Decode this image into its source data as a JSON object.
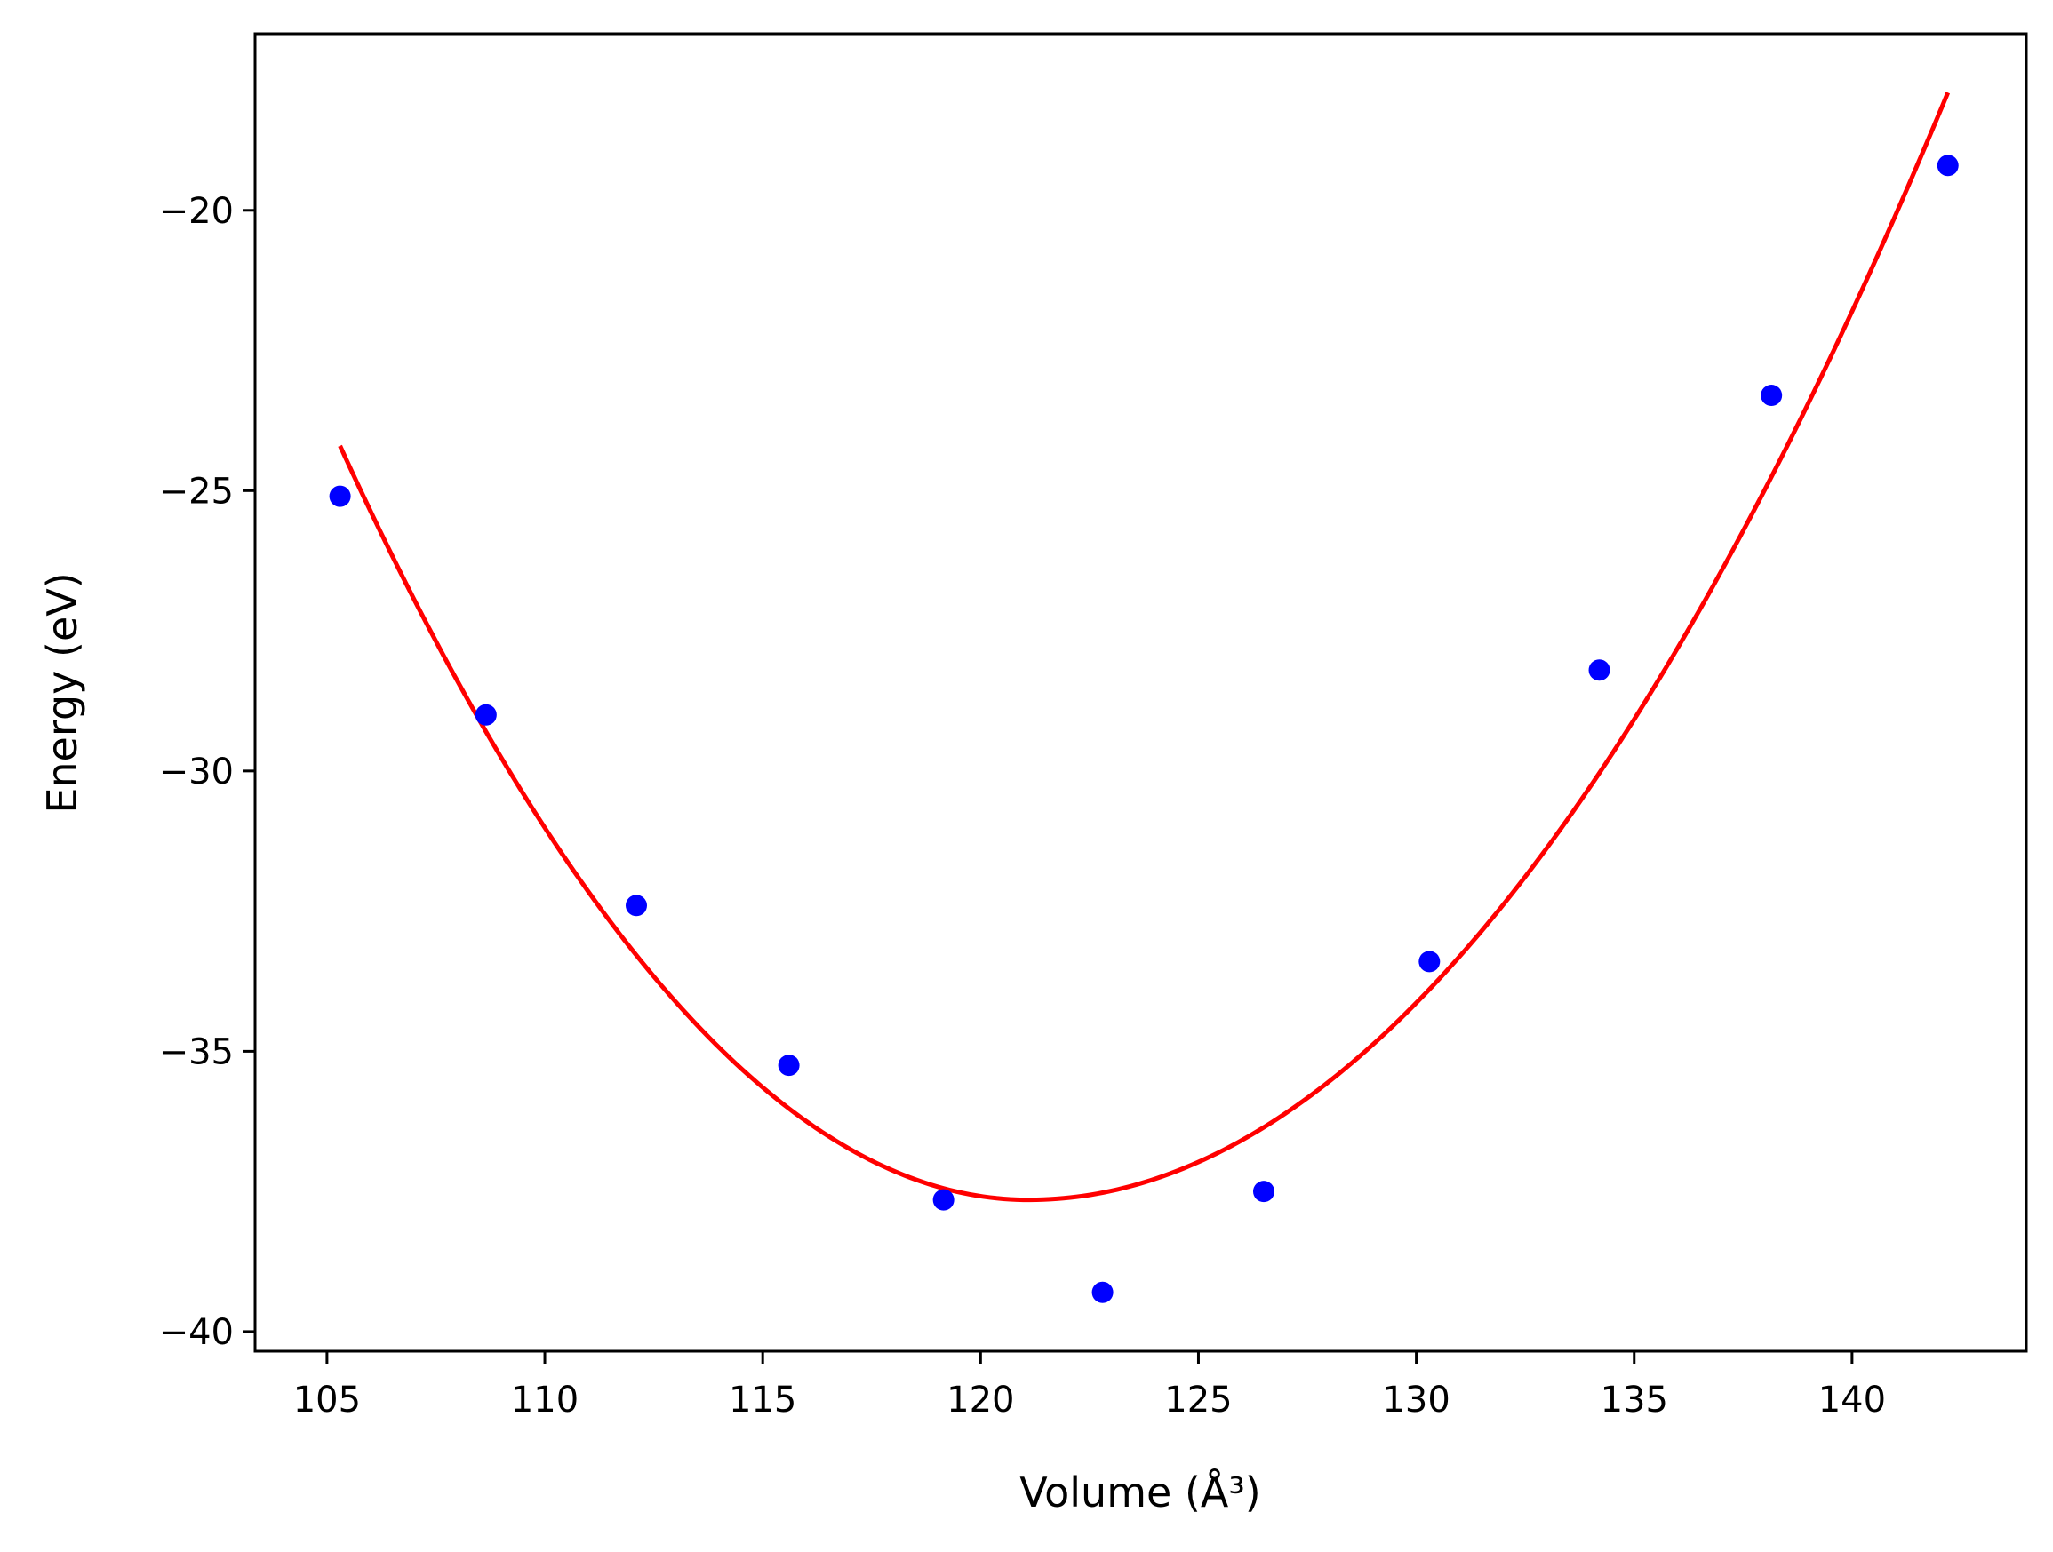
{
  "chart_data": {
    "type": "scatter",
    "xlabel": "Volume (Å³)",
    "ylabel": "Energy (eV)",
    "xlim": [
      103.35,
      144.0
    ],
    "ylim": [
      -40.35,
      -16.85
    ],
    "xticks": [
      105,
      110,
      115,
      120,
      125,
      130,
      135,
      140
    ],
    "yticks": [
      -40,
      -35,
      -30,
      -25,
      -20
    ],
    "xtick_labels": [
      "105",
      "110",
      "115",
      "120",
      "125",
      "130",
      "135",
      "140"
    ],
    "ytick_labels": [
      "−40",
      "−35",
      "−30",
      "−25",
      "−20"
    ],
    "grid": false,
    "legend": null,
    "series": [
      {
        "kind": "scatter",
        "color": "#0000ff",
        "points": [
          {
            "x": 105.3,
            "y": -25.1
          },
          {
            "x": 108.65,
            "y": -29.0
          },
          {
            "x": 112.1,
            "y": -32.4
          },
          {
            "x": 115.6,
            "y": -35.25
          },
          {
            "x": 119.15,
            "y": -37.65
          },
          {
            "x": 122.8,
            "y": -39.3
          },
          {
            "x": 126.5,
            "y": -37.5
          },
          {
            "x": 130.3,
            "y": -33.4
          },
          {
            "x": 134.2,
            "y": -28.2
          },
          {
            "x": 138.15,
            "y": -23.3
          },
          {
            "x": 142.2,
            "y": -19.2
          }
        ]
      },
      {
        "kind": "line",
        "color": "#ff0000",
        "fit": {
          "x_start": 105.3,
          "x_end": 142.2,
          "x_min": 121.1,
          "y_min": -37.65,
          "y_left": -24.2,
          "y_right": -17.9
        }
      }
    ]
  }
}
